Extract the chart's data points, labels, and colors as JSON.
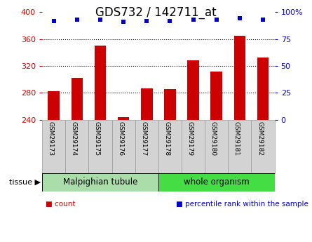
{
  "title": "GDS732 / 142711_at",
  "samples": [
    "GSM29173",
    "GSM29174",
    "GSM29175",
    "GSM29176",
    "GSM29177",
    "GSM29178",
    "GSM29179",
    "GSM29180",
    "GSM29181",
    "GSM29182"
  ],
  "counts": [
    283,
    302,
    350,
    244,
    287,
    286,
    328,
    312,
    365,
    333
  ],
  "percentiles": [
    92,
    93,
    93,
    91,
    92,
    92,
    93,
    93,
    94,
    93
  ],
  "ylim_left": [
    240,
    400
  ],
  "ylim_right": [
    0,
    100
  ],
  "yticks_left": [
    240,
    280,
    320,
    360,
    400
  ],
  "yticks_right": [
    0,
    25,
    50,
    75,
    100
  ],
  "bar_color": "#cc0000",
  "dot_color": "#0000cc",
  "bar_width": 0.5,
  "groups": [
    {
      "label": "Malpighian tubule",
      "start": 0,
      "end": 4,
      "color": "#aaddaa"
    },
    {
      "label": "whole organism",
      "start": 5,
      "end": 9,
      "color": "#44dd44"
    }
  ],
  "tissue_label": "tissue",
  "legend_items": [
    {
      "color": "#cc0000",
      "label": "count"
    },
    {
      "color": "#0000cc",
      "label": "percentile rank within the sample"
    }
  ],
  "background_color": "#ffffff",
  "plot_bg_color": "#ffffff",
  "grid_color": "#000000",
  "title_fontsize": 12,
  "tick_fontsize": 8,
  "label_fontsize": 8,
  "sample_box_color": "#d3d3d3",
  "sample_box_edge_color": "#999999"
}
